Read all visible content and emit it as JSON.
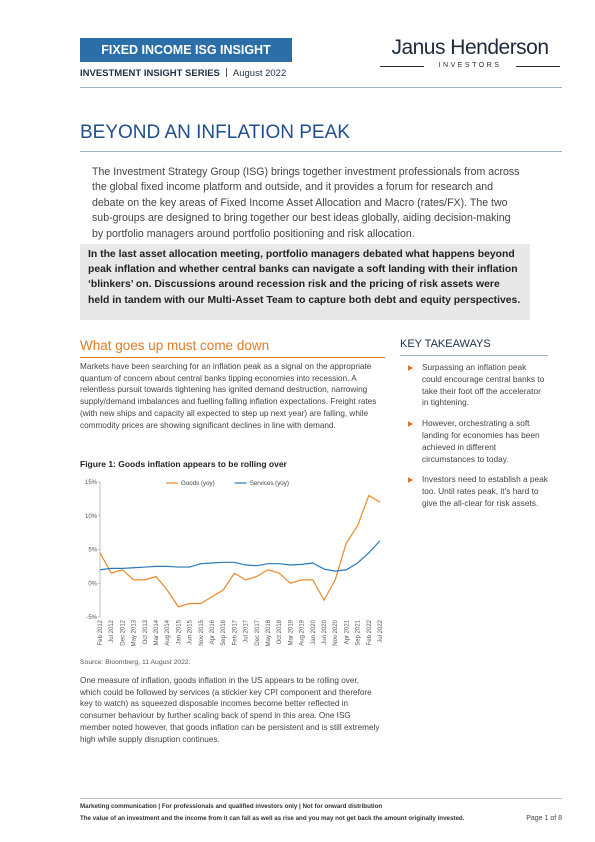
{
  "header": {
    "badge": "FIXED INCOME ISG INSIGHT",
    "series": "INVESTMENT INSIGHT SERIES",
    "date": "August 2022",
    "logo": "Janus Henderson",
    "logo_sub": "INVESTORS"
  },
  "title": "BEYOND AN INFLATION PEAK",
  "intro": "The Investment Strategy Group (ISG) brings together investment professionals from across the global fixed income platform and outside, and it provides a forum for research and debate on the key areas of Fixed Income Asset Allocation and Macro (rates/FX). The two sub-groups are designed to bring together our best ideas globally, aiding decision-making by portfolio managers around portfolio positioning and risk allocation.",
  "highlight": "In the last asset allocation meeting, portfolio managers debated what happens beyond peak inflation and whether central banks can navigate a soft landing with their inflation ‘blinkers’ on. Discussions around recession risk and the pricing of risk assets were held in tandem with our Multi-Asset Team to capture both debt and equity perspectives.",
  "section": {
    "heading": "What goes up must come down",
    "paragraph": "Markets have been searching for an inflation peak as a signal on the appropriate quantum of concern about central banks tipping economies into recession. A relentless pursuit towards tightening has ignited demand destruction, narrowing supply/demand imbalances and fuelling falling inflation expectations. Freight rates (with new ships and capacity all expected to step up next year) are falling, while commodity prices are showing significant declines in line with demand.",
    "figure_caption": "Figure 1: Goods inflation appears to be rolling over",
    "source": "Source: Bloomberg, 11 August 2022.",
    "after": "One measure of inflation, goods inflation in the US appears to be rolling over, which could be followed by services (a stickier key CPI component and therefore key to watch) as squeezed disposable incomes become better reflected in consumer behaviour by further scaling back of spend in this area. One ISG member noted however, that goods inflation can be persistent and is still extremely high while supply disruption continues."
  },
  "key_takeaways": {
    "heading": "KEY TAKEAWAYS",
    "items": [
      "Surpassing an inflation peak could encourage central banks to take their foot off the accelerator in tightening.",
      "However, orchestrating a soft landing for economies has been achieved in different circumstances to today.",
      "Investors need to establish a peak too. Until rates peak, it’s hard to give the all-clear for risk assets."
    ]
  },
  "footer": {
    "line1": "Marketing communication | For professionals and qualified investors only | Not for onward distribution",
    "line2": "The value of an investment and the income from it can fall as well as rise and you may not get back the amount originally invested.",
    "page": "Page 1 of 8"
  },
  "chart_data": {
    "type": "line",
    "categories": [
      "Feb 2012",
      "Jul 2012",
      "Dec 2012",
      "May 2013",
      "Oct 2013",
      "Mar 2014",
      "Aug 2014",
      "Jan 2015",
      "Jun 2015",
      "Nov 2015",
      "Apr 2016",
      "Sep 2016",
      "Feb 2017",
      "Jul 2017",
      "Dec 2017",
      "May 2018",
      "Oct 2018",
      "Mar 2019",
      "Aug 2019",
      "Jan 2020",
      "Jun 2020",
      "Nov 2020",
      "Apr 2021",
      "Sep 2021",
      "Feb 2022",
      "Jul 2022"
    ],
    "series": [
      {
        "name": "Goods (yoy)",
        "color": "#e8892b",
        "values": [
          4.5,
          1.5,
          2,
          0.5,
          0.5,
          1,
          -1,
          -3.5,
          -3,
          -3,
          -2,
          -1,
          1.5,
          0.5,
          1,
          2,
          1.5,
          0,
          0.5,
          0.5,
          -2.5,
          0.5,
          6,
          8.5,
          13,
          12
        ]
      },
      {
        "name": "Services (yoy)",
        "color": "#2a78b8",
        "values": [
          2,
          2.2,
          2.2,
          2.3,
          2.4,
          2.5,
          2.5,
          2.4,
          2.4,
          2.9,
          3,
          3.1,
          3.1,
          2.7,
          2.6,
          2.9,
          2.9,
          2.7,
          2.8,
          3,
          2.1,
          1.8,
          2,
          3,
          4.5,
          6.3
        ]
      }
    ],
    "ylim": [
      -5,
      15
    ],
    "yticks": [
      {
        "value": -5,
        "label": "-5%"
      },
      {
        "value": 0,
        "label": "0%"
      },
      {
        "value": 5,
        "label": "5%"
      },
      {
        "value": 10,
        "label": "10%"
      },
      {
        "value": 15,
        "label": "15%"
      }
    ],
    "grid": false
  }
}
